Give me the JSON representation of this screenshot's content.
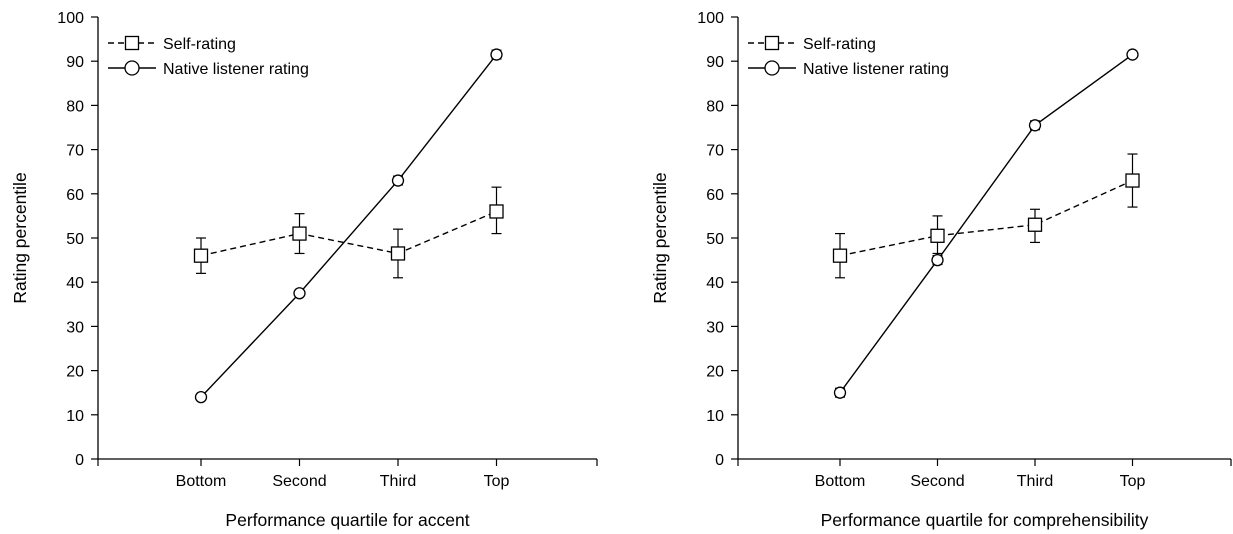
{
  "chart_data": [
    {
      "type": "line",
      "xlabel": "Performance quartile for accent",
      "ylabel": "Rating percentile",
      "categories": [
        "Bottom",
        "Second",
        "Third",
        "Top"
      ],
      "ylim": [
        0,
        100
      ],
      "yticks": [
        0,
        10,
        20,
        30,
        40,
        50,
        60,
        70,
        80,
        90,
        100
      ],
      "legend": {
        "placement": "top-left"
      },
      "series": [
        {
          "name": "Self-rating",
          "marker": "square",
          "line": "dashed",
          "values": [
            46,
            51,
            46.5,
            56
          ],
          "err_low": [
            42,
            46.5,
            41,
            51
          ],
          "err_high": [
            50,
            55.5,
            52,
            61.5
          ]
        },
        {
          "name": "Native listener rating",
          "marker": "circle",
          "line": "solid",
          "values": [
            14,
            37.5,
            63,
            91.5
          ],
          "err_low": [
            13.5,
            37,
            62,
            90.5
          ],
          "err_high": [
            14.5,
            38,
            64,
            92.5
          ]
        }
      ]
    },
    {
      "type": "line",
      "xlabel": "Performance quartile for comprehensibility",
      "ylabel": "Rating percentile",
      "categories": [
        "Bottom",
        "Second",
        "Third",
        "Top"
      ],
      "ylim": [
        0,
        100
      ],
      "yticks": [
        0,
        10,
        20,
        30,
        40,
        50,
        60,
        70,
        80,
        90,
        100
      ],
      "legend": {
        "placement": "top-left"
      },
      "series": [
        {
          "name": "Self-rating",
          "marker": "square",
          "line": "dashed",
          "values": [
            46,
            50.5,
            53,
            63
          ],
          "err_low": [
            41,
            46,
            49,
            57
          ],
          "err_high": [
            51,
            55,
            56.5,
            69
          ]
        },
        {
          "name": "Native listener rating",
          "marker": "circle",
          "line": "solid",
          "values": [
            15,
            45,
            75.5,
            91.5
          ],
          "err_low": [
            14,
            44,
            74.5,
            91
          ],
          "err_high": [
            16,
            46.5,
            76.5,
            92
          ]
        }
      ]
    }
  ]
}
